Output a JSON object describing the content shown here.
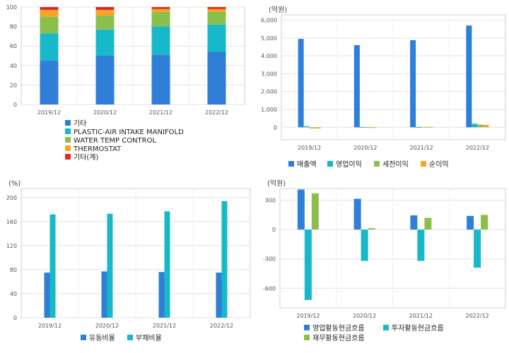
{
  "charts": [
    {
      "type": "bar",
      "stacked": true,
      "unit": "",
      "categories": [
        "2019/12",
        "2020/12",
        "2021/12",
        "2022/12"
      ],
      "yticks": [
        0,
        20,
        40,
        60,
        80,
        100
      ],
      "ylim": [
        0,
        100
      ],
      "grid": true,
      "legend": "bottom",
      "series": [
        {
          "name": "기타",
          "color": "#2f7ed8",
          "values": [
            45,
            50,
            51,
            54
          ]
        },
        {
          "name": "PLASTIC-AIR INTAKE MANIFOLD",
          "color": "#17b8c9",
          "values": [
            28,
            27,
            29,
            28
          ]
        },
        {
          "name": "WATER TEMP CONTROL",
          "color": "#8bbf4d",
          "values": [
            17,
            14,
            15,
            13
          ]
        },
        {
          "name": "THERMOSTAT",
          "color": "#f5a623",
          "values": [
            7,
            6,
            3,
            3
          ]
        },
        {
          "name": "기타(계)",
          "color": "#d92b2b",
          "values": [
            3,
            3,
            2,
            2
          ]
        }
      ]
    },
    {
      "type": "bar",
      "stacked": false,
      "unit": "(억원)",
      "categories": [
        "2019/12",
        "2020/12",
        "2021/12",
        "2022/12"
      ],
      "yticks": [
        0,
        1000,
        2000,
        3000,
        4000,
        5000,
        6000
      ],
      "ytick_labels": [
        "0",
        "1,000",
        "2,000",
        "3,000",
        "4,000",
        "5,000",
        "6,000"
      ],
      "ylim": [
        -700,
        6300
      ],
      "grid": true,
      "legend": "bottom",
      "series": [
        {
          "name": "매출액",
          "color": "#2f7ed8",
          "values": [
            4950,
            4600,
            4880,
            5700
          ]
        },
        {
          "name": "영업이익",
          "color": "#17b8c9",
          "values": [
            60,
            20,
            10,
            200
          ]
        },
        {
          "name": "세전이익",
          "color": "#8bbf4d",
          "values": [
            -60,
            5,
            30,
            150
          ]
        },
        {
          "name": "순이익",
          "color": "#f5a623",
          "values": [
            -70,
            0,
            20,
            140
          ]
        }
      ]
    },
    {
      "type": "bar",
      "stacked": false,
      "unit": "(%)",
      "categories": [
        "2019/12",
        "2020/12",
        "2021/12",
        "2022/12"
      ],
      "yticks": [
        0,
        40,
        80,
        120,
        160,
        200
      ],
      "ylim": [
        0,
        215
      ],
      "grid": true,
      "legend": "bottom",
      "series": [
        {
          "name": "유동비율",
          "color": "#2f7ed8",
          "values": [
            75,
            77,
            76,
            75
          ]
        },
        {
          "name": "부채비율",
          "color": "#17b8c9",
          "values": [
            172,
            173,
            177,
            194
          ]
        }
      ]
    },
    {
      "type": "bar",
      "stacked": false,
      "unit": "(억원)",
      "categories": [
        "2019/12",
        "2020/12",
        "2021/12",
        "2022/12"
      ],
      "yticks": [
        -600,
        -300,
        0,
        300
      ],
      "ylim": [
        -800,
        420
      ],
      "grid": true,
      "legend": "bottom",
      "series": [
        {
          "name": "영업활동현금흐름",
          "color": "#2f7ed8",
          "values": [
            410,
            315,
            145,
            140
          ]
        },
        {
          "name": "투자활동현금흐름",
          "color": "#17b8c9",
          "values": [
            -720,
            -320,
            -320,
            -390
          ]
        },
        {
          "name": "재무활동현금흐름",
          "color": "#8bbf4d",
          "values": [
            370,
            15,
            120,
            150
          ]
        }
      ]
    }
  ]
}
